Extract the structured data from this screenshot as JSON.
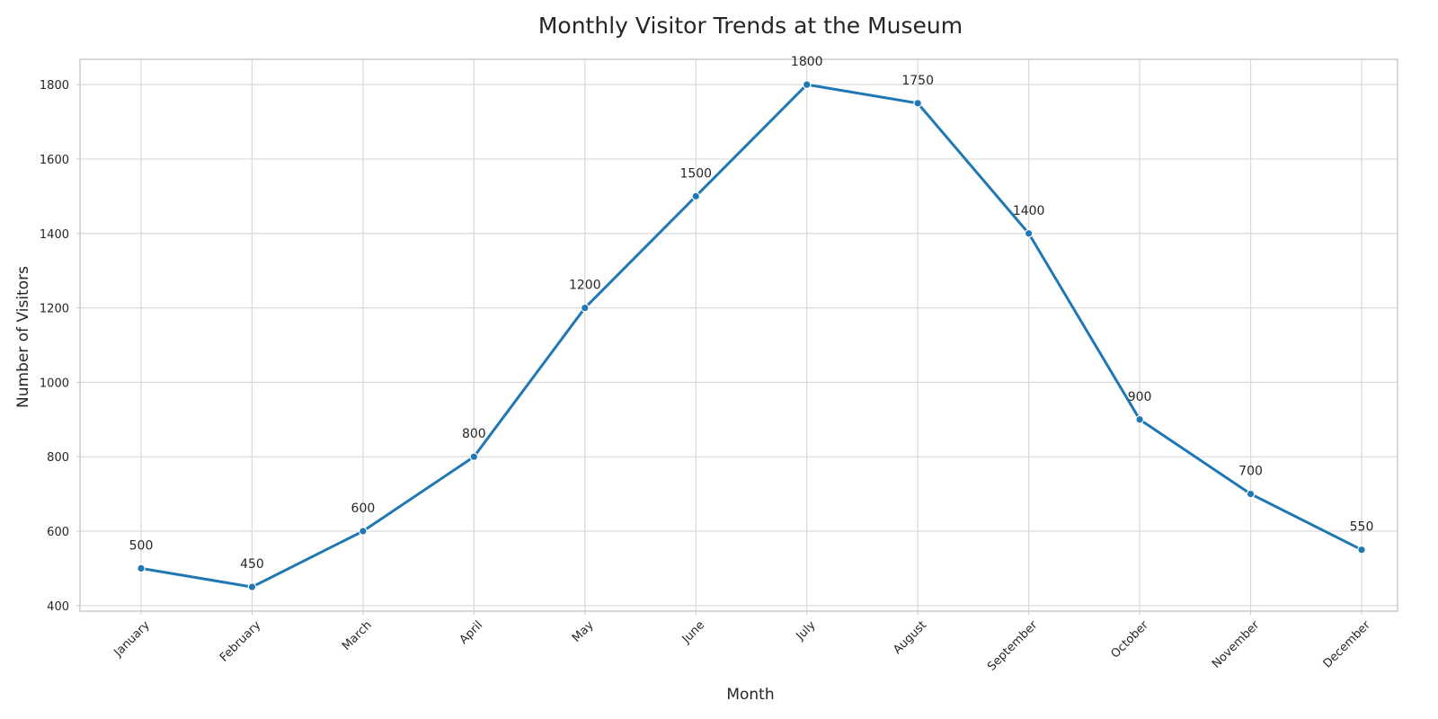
{
  "chart_data": {
    "type": "line",
    "title": "Monthly Visitor Trends at the Museum",
    "xlabel": "Month",
    "ylabel": "Number of Visitors",
    "categories": [
      "January",
      "February",
      "March",
      "April",
      "May",
      "June",
      "July",
      "August",
      "September",
      "October",
      "November",
      "December"
    ],
    "series": [
      {
        "values": [
          500,
          450,
          600,
          800,
          1200,
          1500,
          1800,
          1750,
          1400,
          900,
          700,
          550
        ],
        "color": "#1f77b4",
        "marker": "circle"
      }
    ],
    "data_labels": [
      "500",
      "450",
      "600",
      "800",
      "1200",
      "1500",
      "1800",
      "1750",
      "1400",
      "900",
      "700",
      "550"
    ],
    "ylim": [
      385,
      1868
    ],
    "yticks": [
      400,
      600,
      800,
      1000,
      1200,
      1400,
      1600,
      1800
    ],
    "ytick_labels": [
      "400",
      "600",
      "800",
      "1000",
      "1200",
      "1400",
      "1600",
      "1800"
    ],
    "x_tick_rotation": 45,
    "grid": true,
    "legend": false
  }
}
